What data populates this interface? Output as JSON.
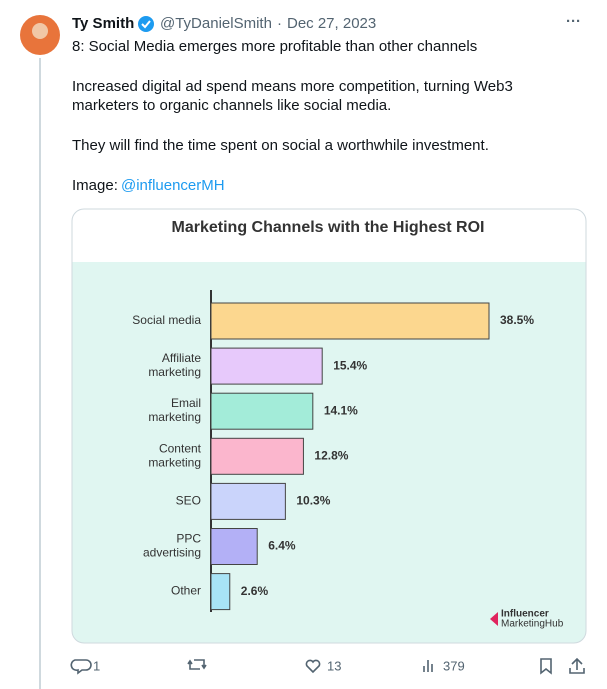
{
  "tweet": {
    "author": {
      "name": "Ty Smith",
      "handle": "@TyDanielSmith",
      "date": "Dec 27, 2023"
    },
    "text": [
      "8: Social Media emerges more profitable than other channels",
      "Increased digital ad spend means more competition, turning Web3",
      "marketers to organic channels like social media.",
      "They will find the time spent on social a worthwhile investment."
    ],
    "image_label": "Image:",
    "image_handle": "@influencerMH",
    "stats": {
      "replies": "1",
      "likes": "13",
      "views": "379"
    }
  },
  "chart_data": {
    "type": "bar",
    "orientation": "horizontal",
    "title": "Marketing Channels with the Highest ROI",
    "categories": [
      "Social media",
      "Affiliate\nmarketing",
      "Email\nmarketing",
      "Content\nmarketing",
      "SEO",
      "PPC\nadvertising",
      "Other"
    ],
    "values": [
      38.5,
      15.4,
      14.1,
      12.8,
      10.3,
      6.4,
      2.6
    ],
    "value_labels": [
      "38.5%",
      "15.4%",
      "14.1%",
      "12.8%",
      "10.3%",
      "6.4%",
      "2.6%"
    ],
    "colors": [
      "#fcd78f",
      "#e7c9fb",
      "#a3ecd9",
      "#fbb6cd",
      "#cad4fb",
      "#b3b0f6",
      "#a8e3f6"
    ],
    "source": [
      "Influencer",
      "MarketingHub"
    ]
  }
}
